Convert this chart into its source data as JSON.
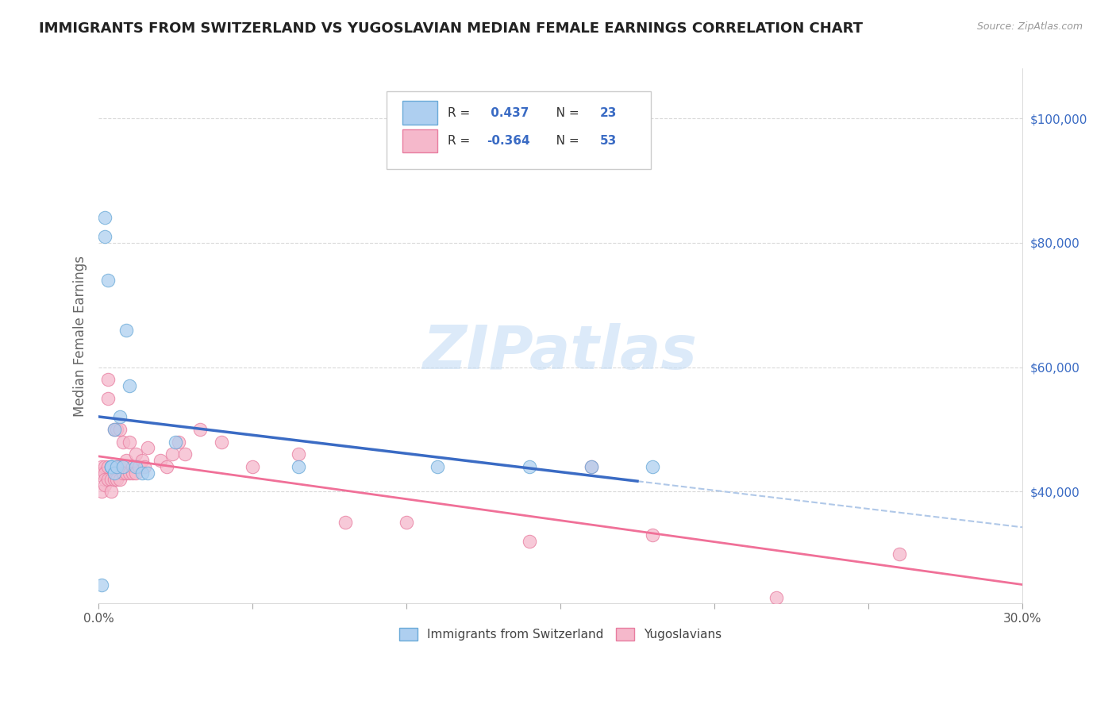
{
  "title": "IMMIGRANTS FROM SWITZERLAND VS YUGOSLAVIAN MEDIAN FEMALE EARNINGS CORRELATION CHART",
  "source_text": "Source: ZipAtlas.com",
  "ylabel": "Median Female Earnings",
  "xlim": [
    0.0,
    0.3
  ],
  "ylim": [
    22000,
    108000
  ],
  "xtick_labels_ends": [
    "0.0%",
    "30.0%"
  ],
  "xtick_values_ends": [
    0.0,
    0.3
  ],
  "ytick_labels": [
    "$40,000",
    "$60,000",
    "$80,000",
    "$100,000"
  ],
  "ytick_values": [
    40000,
    60000,
    80000,
    100000
  ],
  "watermark": "ZIPatlas",
  "swiss_color": "#aecff0",
  "swiss_edge_color": "#6aaad8",
  "yugo_color": "#f5b8cb",
  "yugo_edge_color": "#e87da0",
  "swiss_line_color": "#3a6bc4",
  "yugo_line_color": "#f07098",
  "dashed_line_color": "#b0c8e8",
  "R_swiss": 0.437,
  "N_swiss": 23,
  "R_yugo": -0.364,
  "N_yugo": 53,
  "swiss_points_x": [
    0.001,
    0.002,
    0.002,
    0.003,
    0.004,
    0.004,
    0.004,
    0.005,
    0.005,
    0.006,
    0.007,
    0.008,
    0.009,
    0.01,
    0.012,
    0.014,
    0.016,
    0.025,
    0.065,
    0.11,
    0.14,
    0.16,
    0.18
  ],
  "swiss_points_y": [
    25000,
    81000,
    84000,
    74000,
    44000,
    44000,
    44000,
    50000,
    43000,
    44000,
    52000,
    44000,
    66000,
    57000,
    44000,
    43000,
    43000,
    48000,
    44000,
    44000,
    44000,
    44000,
    44000
  ],
  "yugo_points_x": [
    0.001,
    0.001,
    0.001,
    0.002,
    0.002,
    0.002,
    0.002,
    0.003,
    0.003,
    0.003,
    0.003,
    0.004,
    0.004,
    0.004,
    0.005,
    0.005,
    0.005,
    0.006,
    0.006,
    0.006,
    0.007,
    0.007,
    0.007,
    0.008,
    0.008,
    0.009,
    0.009,
    0.01,
    0.01,
    0.011,
    0.011,
    0.012,
    0.012,
    0.013,
    0.014,
    0.015,
    0.016,
    0.02,
    0.022,
    0.024,
    0.026,
    0.028,
    0.033,
    0.04,
    0.05,
    0.065,
    0.08,
    0.1,
    0.14,
    0.16,
    0.18,
    0.22,
    0.26
  ],
  "yugo_points_y": [
    44000,
    43000,
    40000,
    44000,
    43000,
    42000,
    41000,
    58000,
    55000,
    44000,
    42000,
    44000,
    42000,
    40000,
    43000,
    50000,
    42000,
    50000,
    44000,
    42000,
    50000,
    44000,
    42000,
    48000,
    43000,
    45000,
    43000,
    48000,
    43000,
    44000,
    43000,
    46000,
    43000,
    44000,
    45000,
    44000,
    47000,
    45000,
    44000,
    46000,
    48000,
    46000,
    50000,
    48000,
    44000,
    46000,
    35000,
    35000,
    32000,
    44000,
    33000,
    23000,
    30000
  ],
  "background_color": "#ffffff",
  "grid_color": "#d5d5d5",
  "title_color": "#222222",
  "label_color": "#666666",
  "legend_text_color": "#333333",
  "legend_value_color": "#3a6bc4"
}
